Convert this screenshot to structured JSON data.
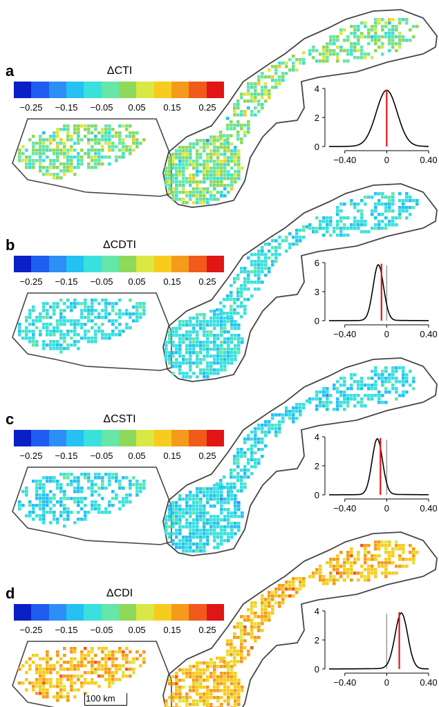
{
  "panels": [
    {
      "label": "a",
      "title": "ΔCTI",
      "marker": 0.0,
      "bias": 0.0,
      "spread": 0.1,
      "peak_max": 4,
      "yticks": [
        "0",
        "2",
        "4"
      ]
    },
    {
      "label": "b",
      "title": "ΔCDTI",
      "marker": -0.05,
      "bias": -0.08,
      "spread": 0.05,
      "peak_max": 6,
      "yticks": [
        "0",
        "3",
        "6"
      ]
    },
    {
      "label": "c",
      "title": "ΔCSTI",
      "marker": -0.06,
      "bias": -0.09,
      "spread": 0.05,
      "peak_max": 4,
      "yticks": [
        "0",
        "2",
        "4"
      ]
    },
    {
      "label": "d",
      "title": "ΔCDI",
      "marker": 0.12,
      "bias": 0.14,
      "spread": 0.06,
      "peak_max": 4,
      "yticks": [
        "0",
        "2",
        "4"
      ]
    }
  ],
  "colorbar": {
    "colors": [
      "#0a1fc6",
      "#1f5cf0",
      "#2d8ef5",
      "#25c1f2",
      "#3ae0de",
      "#66e6a8",
      "#8ed85a",
      "#d9e844",
      "#f7cc1e",
      "#f59a1a",
      "#f2591c",
      "#e01515"
    ],
    "ticks": [
      "−0.25",
      "−0.15",
      "−0.05",
      "0.05",
      "0.15",
      "0.25"
    ]
  },
  "density_axis": {
    "xticks": [
      "−0.40",
      "0",
      "0.40"
    ]
  },
  "scale_bar": {
    "label": "100 km"
  }
}
